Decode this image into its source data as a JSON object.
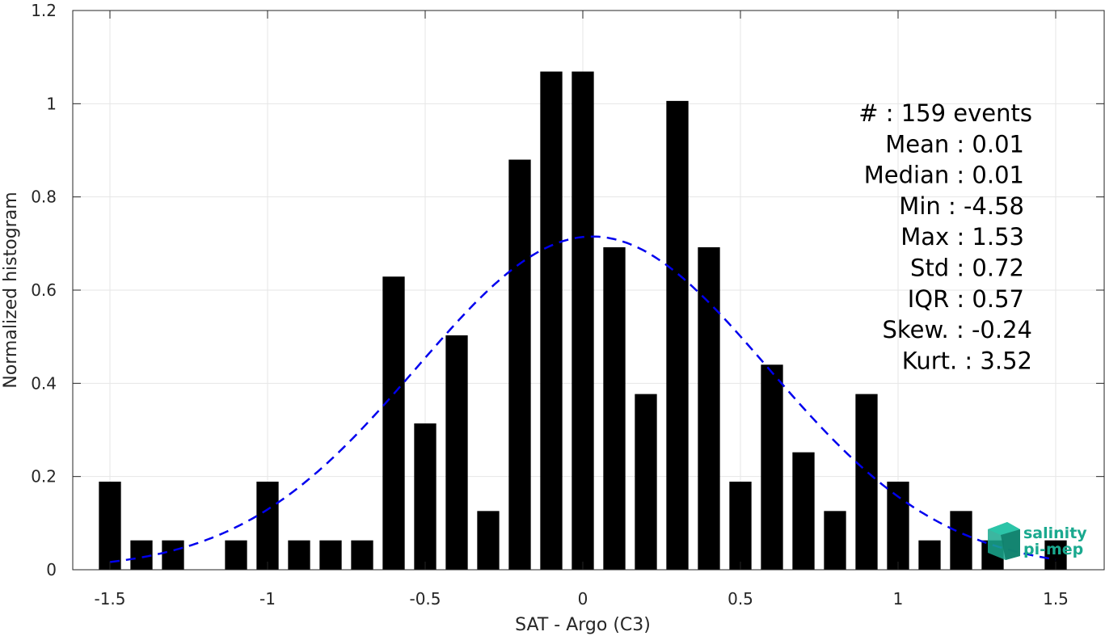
{
  "chart_data": {
    "type": "bar",
    "xlabel": "SAT - Argo (C3)",
    "ylabel": "Normalized histogram",
    "xlim": [
      -1.6,
      1.6
    ],
    "ylim": [
      0,
      1.2
    ],
    "grid": true,
    "x_ticks": [
      -1.5,
      -1,
      -0.5,
      0,
      0.5,
      1,
      1.5
    ],
    "x_tick_labels": [
      "-1.5",
      "-1",
      "-0.5",
      "0",
      "0.5",
      "1",
      "1.5"
    ],
    "y_ticks": [
      0,
      0.2,
      0.4,
      0.6,
      0.8,
      1,
      1.2
    ],
    "y_tick_labels": [
      "0",
      "0.2",
      "0.4",
      "0.6",
      "0.8",
      "1",
      "1.2"
    ],
    "bar_width": 0.07,
    "bins": [
      {
        "x": -1.5,
        "value": 0.189
      },
      {
        "x": -1.4,
        "value": 0.063
      },
      {
        "x": -1.3,
        "value": 0.063
      },
      {
        "x": -1.1,
        "value": 0.063
      },
      {
        "x": -1.0,
        "value": 0.189
      },
      {
        "x": -0.9,
        "value": 0.063
      },
      {
        "x": -0.8,
        "value": 0.063
      },
      {
        "x": -0.7,
        "value": 0.063
      },
      {
        "x": -0.6,
        "value": 0.629
      },
      {
        "x": -0.5,
        "value": 0.314
      },
      {
        "x": -0.4,
        "value": 0.503
      },
      {
        "x": -0.3,
        "value": 0.126
      },
      {
        "x": -0.2,
        "value": 0.88
      },
      {
        "x": -0.1,
        "value": 1.069
      },
      {
        "x": 0.0,
        "value": 1.069
      },
      {
        "x": 0.1,
        "value": 0.692
      },
      {
        "x": 0.2,
        "value": 0.377
      },
      {
        "x": 0.3,
        "value": 1.006
      },
      {
        "x": 0.4,
        "value": 0.692
      },
      {
        "x": 0.5,
        "value": 0.189
      },
      {
        "x": 0.6,
        "value": 0.44
      },
      {
        "x": 0.7,
        "value": 0.252
      },
      {
        "x": 0.8,
        "value": 0.126
      },
      {
        "x": 0.9,
        "value": 0.377
      },
      {
        "x": 1.0,
        "value": 0.189
      },
      {
        "x": 1.1,
        "value": 0.063
      },
      {
        "x": 1.2,
        "value": 0.126
      },
      {
        "x": 1.3,
        "value": 0.063
      },
      {
        "x": 1.5,
        "value": 0.063
      }
    ],
    "fit_curve": {
      "style": "dashed",
      "color": "#0000ee",
      "x_range": [
        -1.5,
        1.5
      ],
      "mean": 0.03,
      "peak": 0.715,
      "sigma": 0.557
    },
    "bar_color": "#000000"
  },
  "stats": [
    "#  : 159 events",
    "Mean : 0.01",
    "Median : 0.01",
    "Min : -4.58",
    "Max : 1.53",
    "Std : 0.72",
    "IQR : 0.57",
    "Skew. : -0.24",
    "Kurt. : 3.52"
  ],
  "logo": {
    "line1": "salinity",
    "line2": "pi-mep",
    "color": "#1aa98f"
  }
}
